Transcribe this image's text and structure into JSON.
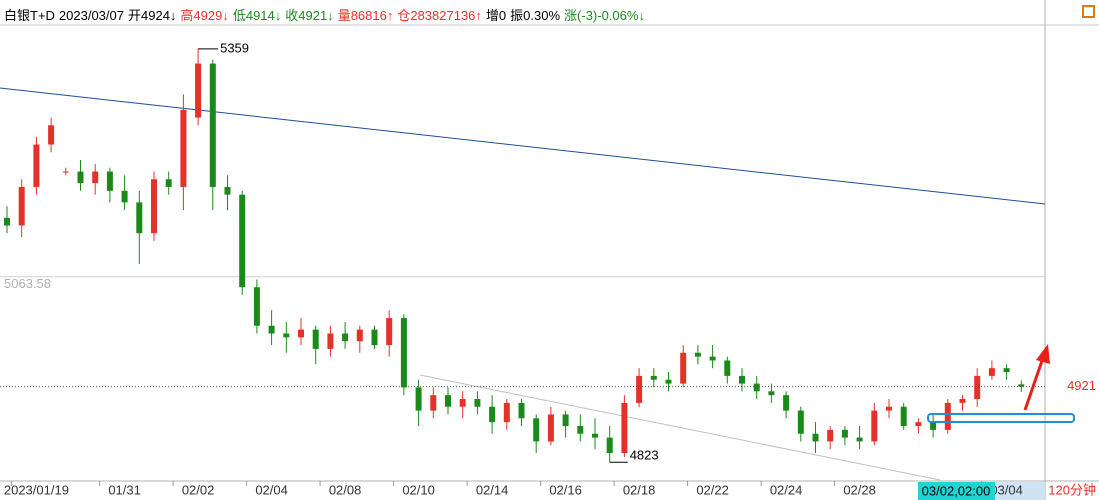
{
  "chart_data": {
    "type": "candlestick",
    "header": [
      {
        "text": "白银T+D",
        "color": "#000000"
      },
      {
        "text": "2023/03/07",
        "color": "#000000"
      },
      {
        "text": "开4924↓",
        "color": "#000000"
      },
      {
        "text": "高4929↓",
        "color": "#e4322b"
      },
      {
        "text": "低4914↓",
        "color": "#1a8a1a"
      },
      {
        "text": "收4921↓",
        "color": "#1a8a1a"
      },
      {
        "text": "量86816↑",
        "color": "#e4322b"
      },
      {
        "text": "仓283827136↑",
        "color": "#e4322b"
      },
      {
        "text": "增0",
        "color": "#000000"
      },
      {
        "text": "振0.30%",
        "color": "#000000"
      },
      {
        "text": "涨(-3)-0.06%↓",
        "color": "#1a8a1a"
      }
    ],
    "period_label": "120分钟",
    "cursor_label": "03/02,02:00",
    "up_color": "#e4322b",
    "down_color": "#1a8a1a",
    "ylim": [
      4800,
      5390
    ],
    "yticks": [
      5063.58
    ],
    "categories": [
      null,
      null,
      "2023/01/19",
      null,
      null,
      null,
      null,
      null,
      "01/31",
      null,
      null,
      null,
      null,
      "02/02",
      null,
      null,
      null,
      null,
      "02/04",
      null,
      null,
      null,
      null,
      "02/08",
      null,
      null,
      null,
      null,
      "02/10",
      null,
      null,
      null,
      null,
      "02/14",
      null,
      null,
      null,
      null,
      "02/16",
      null,
      null,
      null,
      null,
      "02/18",
      null,
      null,
      null,
      null,
      "02/22",
      null,
      null,
      null,
      null,
      "02/24",
      null,
      null,
      null,
      null,
      "02/28",
      null,
      null,
      null,
      null,
      null,
      null,
      null,
      null,
      null,
      "03/04",
      null
    ],
    "open": [
      5140,
      5130,
      5180,
      5235,
      5200,
      5200,
      5185,
      5200,
      5175,
      5160,
      5120,
      5190,
      5180,
      5270,
      5340,
      5180,
      5170,
      5050,
      5000,
      4990,
      4985,
      4995,
      4970,
      4990,
      4980,
      4995,
      4975,
      5010,
      4920,
      4890,
      4910,
      4895,
      4905,
      4895,
      4875,
      4900,
      4880,
      4850,
      4885,
      4870,
      4860,
      4855,
      4835,
      4900,
      4935,
      4930,
      4925,
      4965,
      4960,
      4955,
      4935,
      4925,
      4915,
      4910,
      4890,
      4860,
      4850,
      4865,
      4855,
      4850,
      4890,
      4895,
      4870,
      4875,
      4865,
      4900,
      4905,
      4935,
      4945,
      4924
    ],
    "high": [
      5155,
      5190,
      5245,
      5270,
      5205,
      5215,
      5210,
      5205,
      5195,
      5175,
      5200,
      5200,
      5300,
      5359,
      5345,
      5195,
      5175,
      5060,
      5020,
      5005,
      5010,
      5000,
      5000,
      5005,
      5000,
      5000,
      5020,
      5015,
      4930,
      4920,
      4920,
      4915,
      4915,
      4910,
      4905,
      4905,
      4885,
      4895,
      4890,
      4885,
      4880,
      4870,
      4910,
      4945,
      4945,
      4940,
      4975,
      4975,
      4975,
      4960,
      4945,
      4935,
      4925,
      4915,
      4895,
      4875,
      4870,
      4870,
      4870,
      4900,
      4905,
      4900,
      4880,
      4885,
      4905,
      4910,
      4945,
      4955,
      4950,
      4929
    ],
    "low": [
      5120,
      5115,
      5170,
      5225,
      5195,
      5175,
      5170,
      5160,
      5150,
      5080,
      5110,
      5170,
      5150,
      5260,
      5150,
      5150,
      5040,
      4990,
      4975,
      4965,
      4975,
      4950,
      4960,
      4970,
      4965,
      4970,
      4960,
      4910,
      4870,
      4880,
      4885,
      4880,
      4885,
      4860,
      4865,
      4870,
      4835,
      4845,
      4855,
      4850,
      4840,
      4823,
      4830,
      4895,
      4920,
      4915,
      4920,
      4950,
      4945,
      4925,
      4915,
      4905,
      4900,
      4880,
      4850,
      4835,
      4840,
      4845,
      4840,
      4845,
      4880,
      4865,
      4860,
      4855,
      4860,
      4890,
      4895,
      4930,
      4930,
      4914
    ],
    "close": [
      5130,
      5180,
      5235,
      5260,
      5200,
      5185,
      5200,
      5175,
      5160,
      5120,
      5190,
      5180,
      5280,
      5340,
      5180,
      5170,
      5050,
      5000,
      4990,
      4985,
      4995,
      4970,
      4990,
      4980,
      4995,
      4975,
      5010,
      4920,
      4890,
      4910,
      4895,
      4905,
      4895,
      4875,
      4900,
      4880,
      4850,
      4885,
      4870,
      4860,
      4855,
      4835,
      4900,
      4935,
      4930,
      4925,
      4965,
      4960,
      4955,
      4935,
      4925,
      4915,
      4910,
      4890,
      4860,
      4850,
      4865,
      4855,
      4850,
      4890,
      4895,
      4870,
      4875,
      4865,
      4900,
      4905,
      4935,
      4945,
      4940,
      4921
    ]
  }
}
